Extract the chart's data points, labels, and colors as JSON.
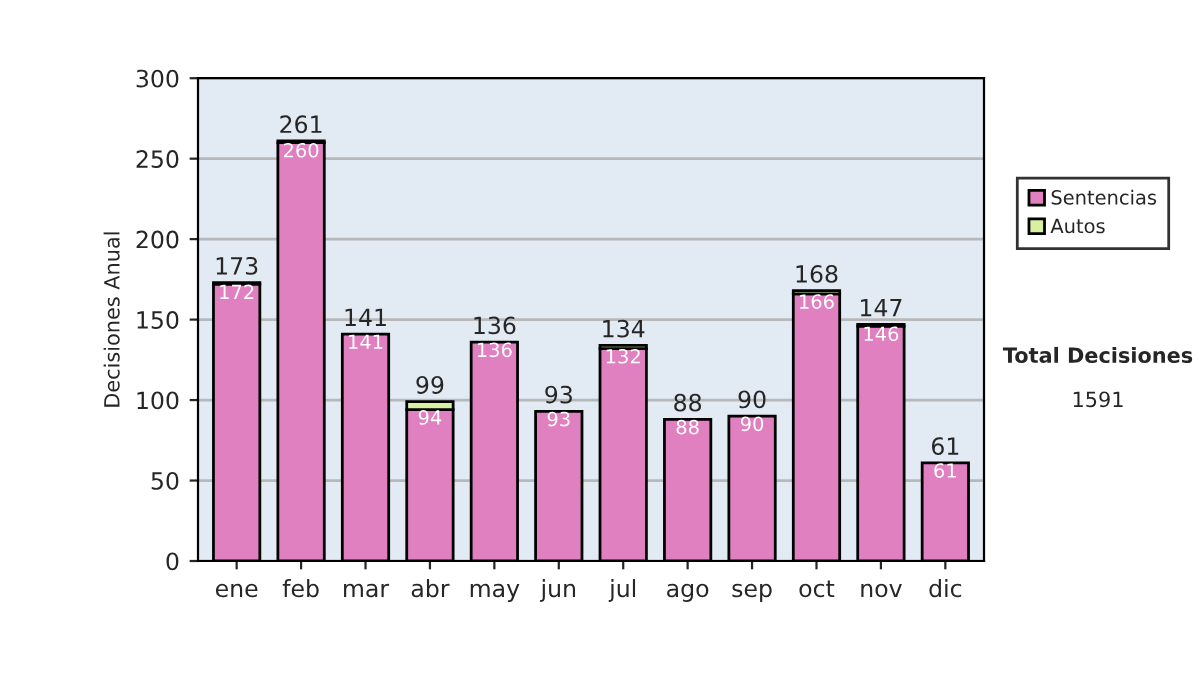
{
  "chart_data": {
    "type": "bar",
    "ylabel": "Decisiones Anual",
    "categories": [
      "ene",
      "feb",
      "mar",
      "abr",
      "may",
      "jun",
      "jul",
      "ago",
      "sep",
      "oct",
      "nov",
      "dic"
    ],
    "series": [
      {
        "name": "Sentencias",
        "color": "#e080c0",
        "values": [
          172,
          260,
          141,
          94,
          136,
          93,
          132,
          88,
          90,
          166,
          146,
          61
        ],
        "value_labels": [
          "172",
          "260",
          "141",
          "94",
          "136",
          "93",
          "132",
          "88",
          "90",
          "166",
          "146",
          "61"
        ]
      },
      {
        "name": "Autos",
        "color": "#d8f0a0",
        "values": [
          1,
          1,
          0,
          5,
          0,
          0,
          2,
          0,
          0,
          2,
          1,
          0
        ]
      }
    ],
    "stacked": true,
    "totals": [
      "173",
      "261",
      "141",
      "99",
      "136",
      "93",
      "134",
      "88",
      "90",
      "168",
      "147",
      "61"
    ],
    "ylim": [
      0,
      300
    ],
    "yticks": [
      0,
      50,
      100,
      150,
      200,
      250,
      300
    ],
    "grid": "y",
    "legend": "right",
    "annotations": [
      "Total Decisiones",
      "1591"
    ]
  }
}
